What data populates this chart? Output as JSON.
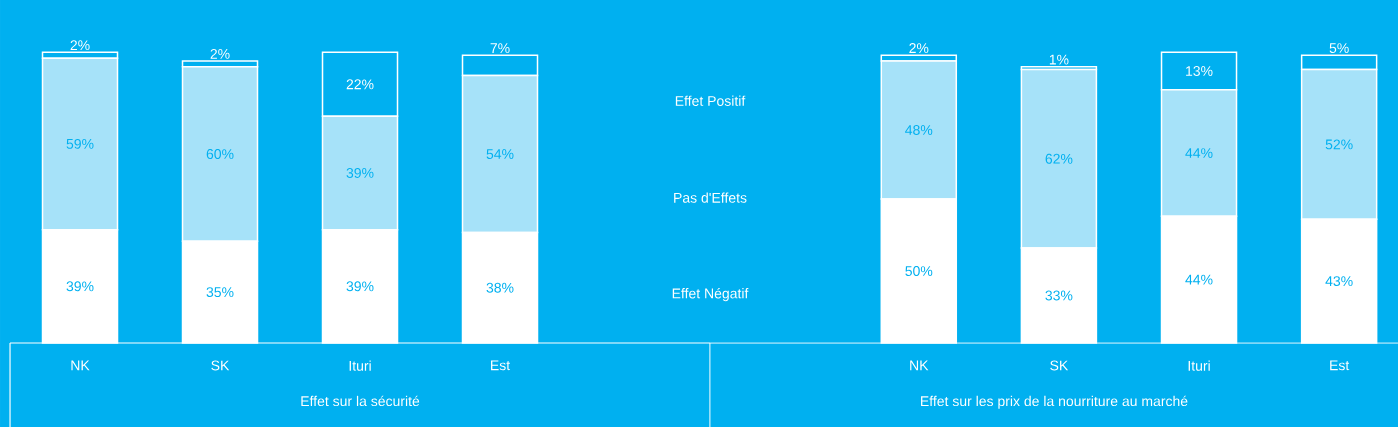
{
  "chart_data": [
    {
      "type": "bar",
      "stacked": true,
      "xlabel": "Effet sur la sécurité",
      "categories": [
        "NK",
        "SK",
        "Ituri",
        "Est"
      ],
      "grid": false,
      "legend": false,
      "series": [
        {
          "name": "Effet Négatif",
          "color": "#ffffff",
          "values": [
            39,
            35,
            39,
            38
          ],
          "value_labels": [
            "39%",
            "35%",
            "39%",
            "38%"
          ]
        },
        {
          "name": "Pas d'Effets",
          "color": "#a6e2f9",
          "values": [
            59,
            60,
            39,
            54
          ],
          "value_labels": [
            "59%",
            "60%",
            "39%",
            "54%"
          ]
        },
        {
          "name": "Effet Positif",
          "color": "#00b0f0",
          "values": [
            2,
            2,
            22,
            7
          ],
          "value_labels": [
            "2%",
            "2%",
            "22%",
            "7%"
          ]
        }
      ]
    },
    {
      "type": "bar",
      "stacked": true,
      "xlabel": "Effet sur les prix de la nourriture au marché",
      "categories": [
        "NK",
        "SK",
        "Ituri",
        "Est"
      ],
      "grid": false,
      "legend": false,
      "series": [
        {
          "color": "#ffffff",
          "values": [
            50,
            33,
            44,
            43
          ],
          "value_labels": [
            "50%",
            "33%",
            "44%",
            "43%"
          ]
        },
        {
          "color": "#a6e2f9",
          "values": [
            48,
            62,
            44,
            52
          ],
          "value_labels": [
            "48%",
            "62%",
            "44%",
            "52%"
          ]
        },
        {
          "color": "#00b0f0",
          "values": [
            2,
            1,
            13,
            5
          ],
          "value_labels": [
            "2%",
            "1%",
            "13%",
            "5%"
          ]
        }
      ]
    }
  ]
}
